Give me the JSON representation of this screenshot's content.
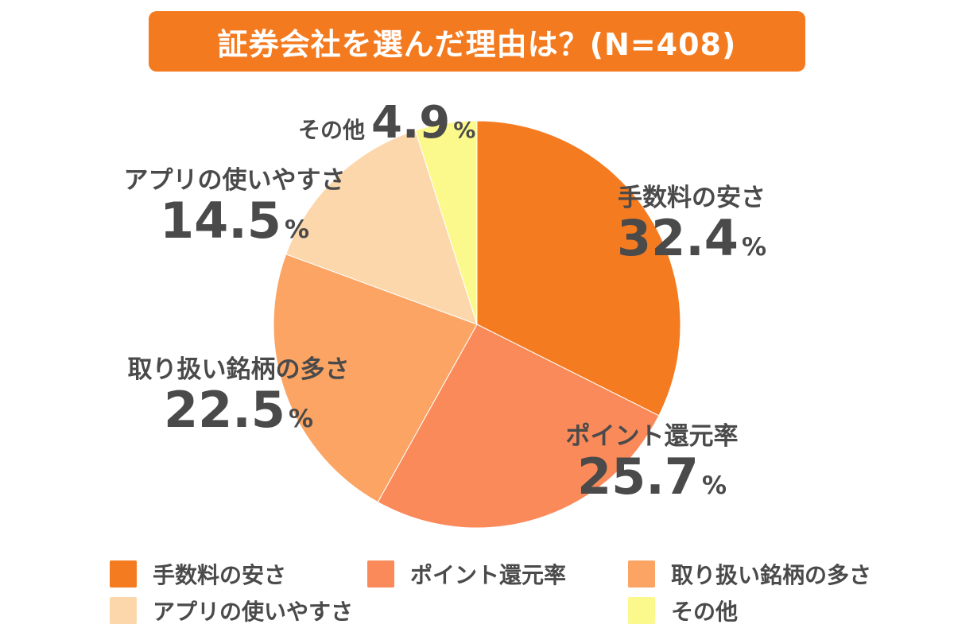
{
  "title": "証券会社を選んだ理由は？(N=408)",
  "chart_data": {
    "type": "pie",
    "title": "証券会社を選んだ理由は？(N=408)",
    "unit": "%",
    "slices": [
      {
        "label": "手数料の安さ",
        "value": 32.4,
        "value_text": "32.4",
        "color": "#f47b20"
      },
      {
        "label": "ポイント還元率",
        "value": 25.7,
        "value_text": "25.7",
        "color": "#fa8a5a"
      },
      {
        "label": "取り扱い銘柄の多さ",
        "value": 22.5,
        "value_text": "22.5",
        "color": "#fba463"
      },
      {
        "label": "アプリの使いやすさ",
        "value": 14.5,
        "value_text": "14.5",
        "color": "#fcd7ab"
      },
      {
        "label": "その他",
        "value": 4.9,
        "value_text": "4.9",
        "color": "#fcf98c"
      }
    ],
    "legend_position": "bottom"
  }
}
